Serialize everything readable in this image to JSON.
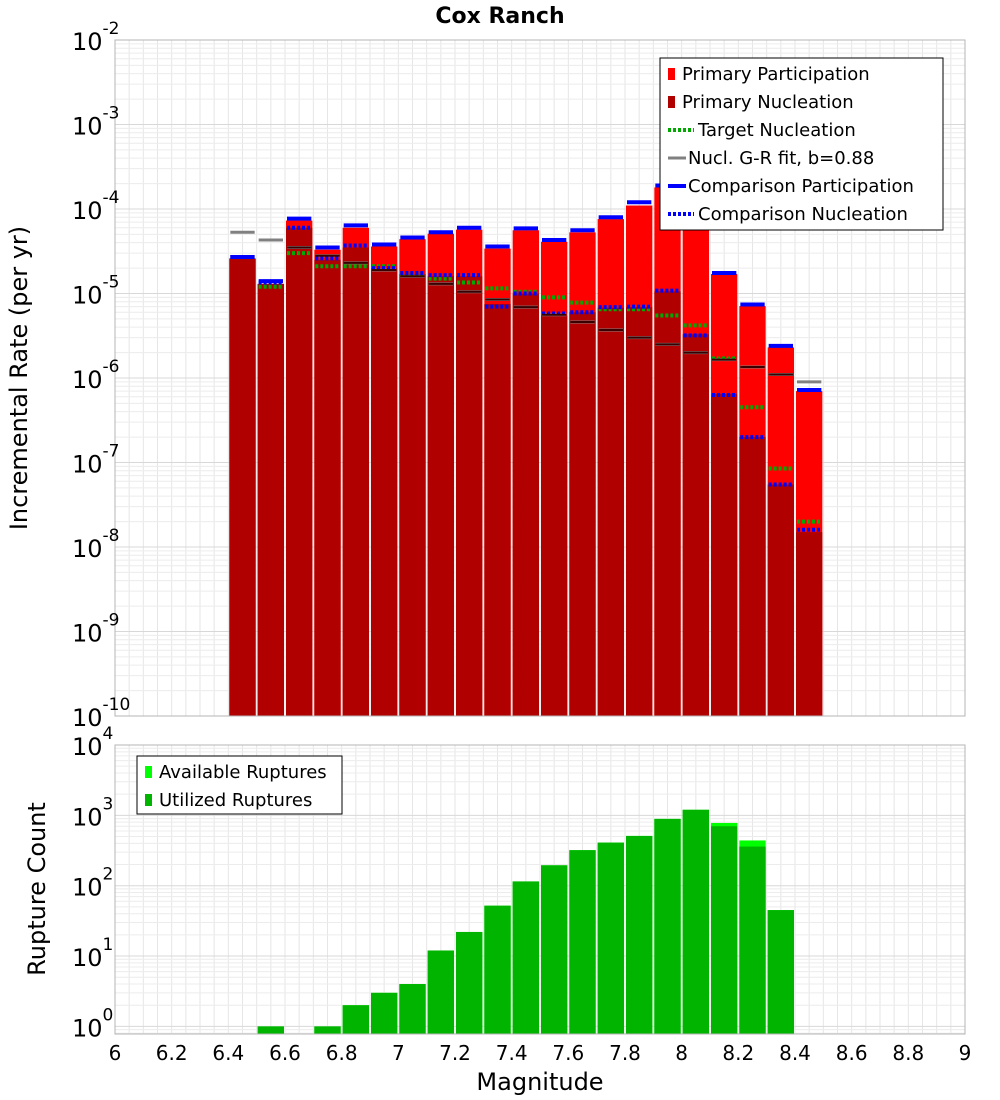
{
  "title": "Cox Ranch",
  "chart_data": [
    {
      "type": "bar",
      "ylabel": "Incremental Rate (per yr)",
      "ylog": true,
      "ylim": [
        1e-10,
        0.01
      ],
      "xlim": [
        6,
        9
      ],
      "grid": true,
      "legend_position": "top-right",
      "y_tick_labels": [
        {
          "base": "10",
          "exp": "-10"
        },
        {
          "base": "10",
          "exp": "-9"
        },
        {
          "base": "10",
          "exp": "-8"
        },
        {
          "base": "10",
          "exp": "-7"
        },
        {
          "base": "10",
          "exp": "-6"
        },
        {
          "base": "10",
          "exp": "-5"
        },
        {
          "base": "10",
          "exp": "-4"
        },
        {
          "base": "10",
          "exp": "-3"
        },
        {
          "base": "10",
          "exp": "-2"
        }
      ],
      "x": [
        6.45,
        6.55,
        6.65,
        6.75,
        6.85,
        6.95,
        7.05,
        7.15,
        7.25,
        7.35,
        7.45,
        7.55,
        7.65,
        7.75,
        7.85,
        7.95,
        8.05,
        8.15,
        8.25,
        8.35,
        8.45
      ],
      "series": [
        {
          "name": "Primary Participation",
          "color": "#ff0000",
          "style": "bar",
          "values": [
            2.6e-05,
            1.3e-05,
            7.3e-05,
            3.3e-05,
            6e-05,
            3.6e-05,
            4.4e-05,
            5.1e-05,
            5.7e-05,
            3.4e-05,
            5.6e-05,
            4.1e-05,
            5.3e-05,
            7.6e-05,
            0.00011,
            0.00018,
            7.3e-05,
            1.7e-05,
            7.1e-06,
            2.3e-06,
            7e-07
          ]
        },
        {
          "name": "Primary Nucleation",
          "color": "#b00000",
          "style": "bar",
          "values": [
            2.6e-05,
            1.3e-05,
            6e-05,
            2.5e-05,
            3.5e-05,
            2e-05,
            1.7e-05,
            1.6e-05,
            1.6e-05,
            7.5e-06,
            1e-05,
            5.5e-06,
            6e-06,
            6.8e-06,
            6.9e-06,
            1.06e-05,
            3.3e-06,
            6.5e-07,
            2e-07,
            5.5e-08,
            1.5e-08
          ]
        },
        {
          "name": "Target Nucleation",
          "color": "#00aa00",
          "style": "dotted",
          "values": [
            null,
            1.2e-05,
            3e-05,
            2.1e-05,
            2.1e-05,
            2.1e-05,
            1.7e-05,
            1.5e-05,
            1.35e-05,
            1.15e-05,
            1.05e-05,
            9e-06,
            7.8e-06,
            6.5e-06,
            6.5e-06,
            5.5e-06,
            4.2e-06,
            1.7e-06,
            4.5e-07,
            8.5e-08,
            2e-08
          ]
        },
        {
          "name": "Nucl. G-R fit, b=0.88",
          "color": "#808080",
          "style": "dash",
          "values": [
            5.3e-05,
            4.3e-05,
            3.5e-05,
            2.8e-05,
            2.3e-05,
            1.9e-05,
            1.6e-05,
            1.3e-05,
            1.05e-05,
            8.5e-06,
            6.9e-06,
            5.6e-06,
            4.6e-06,
            3.7e-06,
            3e-06,
            2.5e-06,
            2e-06,
            1.65e-06,
            1.35e-06,
            1.1e-06,
            9e-07
          ]
        },
        {
          "name": "Comparison Participation",
          "color": "#0000ff",
          "style": "solid",
          "values": [
            2.7e-05,
            1.4e-05,
            7.7e-05,
            3.5e-05,
            6.4e-05,
            3.8e-05,
            4.6e-05,
            5.3e-05,
            6e-05,
            3.6e-05,
            5.9e-05,
            4.3e-05,
            5.6e-05,
            8e-05,
            0.00012,
            0.00019,
            7.3e-05,
            1.75e-05,
            7.4e-06,
            2.4e-06,
            7.2e-07
          ]
        },
        {
          "name": "Comparison Nucleation",
          "color": "#0000ff",
          "style": "dotted",
          "values": [
            2.7e-05,
            1.35e-05,
            6e-05,
            2.6e-05,
            3.7e-05,
            2e-05,
            1.75e-05,
            1.65e-05,
            1.65e-05,
            7e-06,
            1e-05,
            5.8e-06,
            6e-06,
            6.9e-06,
            7e-06,
            1.08e-05,
            3.2e-06,
            6.3e-07,
            2e-07,
            5.5e-08,
            1.6e-08
          ]
        }
      ]
    },
    {
      "type": "bar",
      "xlabel": "Magnitude",
      "ylabel": "Rupture Count",
      "ylog": true,
      "ylim": [
        0.78,
        10000
      ],
      "xlim": [
        6,
        9
      ],
      "grid": true,
      "legend_position": "top-left",
      "y_tick_labels": [
        {
          "base": "10",
          "exp": "0"
        },
        {
          "base": "10",
          "exp": "1"
        },
        {
          "base": "10",
          "exp": "2"
        },
        {
          "base": "10",
          "exp": "3"
        },
        {
          "base": "10",
          "exp": "4"
        }
      ],
      "x_tick_labels": [
        "6",
        "6.2",
        "6.4",
        "6.6",
        "6.8",
        "7",
        "7.2",
        "7.4",
        "7.6",
        "7.8",
        "8",
        "8.2",
        "8.4",
        "8.6",
        "8.8",
        "9"
      ],
      "x": [
        6.55,
        6.75,
        6.85,
        6.95,
        7.05,
        7.15,
        7.25,
        7.35,
        7.45,
        7.55,
        7.65,
        7.75,
        7.85,
        7.95,
        8.05,
        8.15,
        8.25,
        8.35
      ],
      "series": [
        {
          "name": "Available Ruptures",
          "color": "#00ff00",
          "style": "bar",
          "values": [
            1,
            1,
            2,
            3,
            4,
            12,
            22,
            52,
            115,
            195,
            320,
            410,
            510,
            890,
            1200,
            780,
            440,
            45
          ]
        },
        {
          "name": "Utilized Ruptures",
          "color": "#00b400",
          "style": "bar",
          "values": [
            1,
            1,
            2,
            3,
            4,
            12,
            22,
            52,
            115,
            195,
            320,
            410,
            510,
            890,
            1200,
            700,
            360,
            45
          ]
        }
      ]
    }
  ]
}
